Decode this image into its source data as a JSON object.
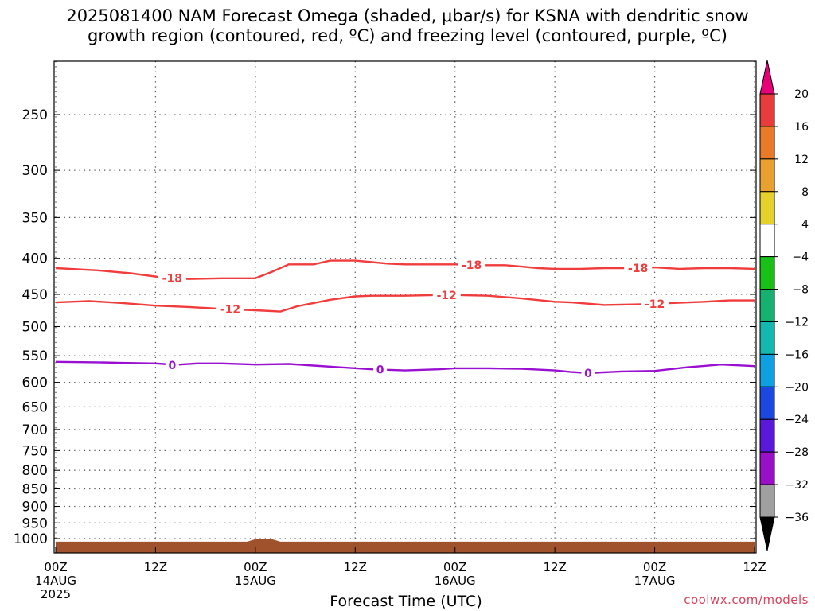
{
  "title_line1": "2025081400 NAM Forecast Omega (shaded, μbar/s) for KSNA with dendritic snow",
  "title_line2": "growth region (contoured, red, ºC) and freezing level (contoured, purple, ºC)",
  "credit": "coolwx.com/models",
  "chart_data": {
    "type": "line",
    "xlabel": "Forecast Time (UTC)",
    "ylabel": "",
    "y_scale": "log-pressure (inverted)",
    "ylim": [
      1050,
      200
    ],
    "xlim": [
      0,
      84
    ],
    "x_ticks": [
      {
        "x": 0,
        "label": [
          "00Z",
          "14AUG",
          "2025"
        ]
      },
      {
        "x": 12,
        "label": [
          "12Z"
        ]
      },
      {
        "x": 24,
        "label": [
          "00Z",
          "15AUG"
        ]
      },
      {
        "x": 36,
        "label": [
          "12Z"
        ]
      },
      {
        "x": 48,
        "label": [
          "00Z",
          "16AUG"
        ]
      },
      {
        "x": 60,
        "label": [
          "12Z"
        ]
      },
      {
        "x": 72,
        "label": [
          "00Z",
          "17AUG"
        ]
      },
      {
        "x": 84,
        "label": [
          "12Z"
        ]
      }
    ],
    "y_ticks": [
      250,
      300,
      350,
      400,
      450,
      500,
      550,
      600,
      650,
      700,
      750,
      800,
      850,
      900,
      950,
      1000
    ],
    "grid": true,
    "series": [
      {
        "name": "-18",
        "color": "#f03c3c",
        "label_at": [
          14,
          50,
          70
        ],
        "x": [
          0,
          5,
          9,
          13,
          16,
          20,
          24,
          26,
          28,
          31,
          33,
          36,
          38,
          40,
          42,
          45,
          48,
          51,
          54,
          56,
          58,
          60,
          63,
          66,
          68,
          70,
          72,
          75,
          78,
          81,
          84
        ],
        "y": [
          413,
          416,
          420,
          426,
          428,
          427,
          427,
          418,
          408,
          408,
          403,
          403,
          405,
          407,
          408,
          408,
          408,
          409,
          409,
          411,
          413,
          414,
          414,
          413,
          413,
          413,
          412,
          414,
          413,
          413,
          414
        ]
      },
      {
        "name": "-12",
        "color": "#f03c3c",
        "label_at": [
          21,
          47,
          72
        ],
        "x": [
          0,
          4,
          8,
          12,
          16,
          20,
          24,
          27,
          29,
          31,
          33,
          36,
          38,
          42,
          46,
          48,
          52,
          56,
          60,
          62,
          66,
          70,
          74,
          78,
          81,
          84
        ],
        "y": [
          462,
          460,
          463,
          467,
          469,
          472,
          474,
          476,
          468,
          463,
          458,
          453,
          452,
          452,
          451,
          451,
          452,
          456,
          461,
          462,
          466,
          465,
          463,
          461,
          459,
          459
        ]
      },
      {
        "name": "0",
        "color": "#9a10d0",
        "label_at": [
          14,
          39,
          64
        ],
        "x": [
          0,
          5,
          8,
          12,
          13,
          14,
          17,
          20,
          24,
          28,
          31,
          34,
          38,
          42,
          46,
          48,
          52,
          56,
          60,
          62,
          64,
          68,
          72,
          76,
          80,
          84
        ],
        "y": [
          561,
          562,
          563,
          564,
          565,
          567,
          564,
          564,
          566,
          565,
          568,
          571,
          575,
          577,
          575,
          573,
          573,
          574,
          577,
          580,
          582,
          579,
          578,
          571,
          566,
          569
        ]
      }
    ],
    "terrain": {
      "color": "#a0522d",
      "surface_hpa": [
        {
          "x": 0,
          "p": 1010
        },
        {
          "x": 23,
          "p": 1010
        },
        {
          "x": 24,
          "p": 1002
        },
        {
          "x": 26,
          "p": 1002
        },
        {
          "x": 27,
          "p": 1010
        },
        {
          "x": 84,
          "p": 1010
        }
      ]
    },
    "colorbar": {
      "labels": [
        "20",
        "16",
        "12",
        "8",
        "4",
        "−4",
        "−8",
        "−12",
        "−16",
        "−20",
        "−24",
        "−28",
        "−32",
        "−36"
      ],
      "colors": [
        "#e8007a",
        "#e63c3c",
        "#e87a28",
        "#e8a030",
        "#e6d02c",
        "#ffffff",
        "#18c018",
        "#16b070",
        "#14b8b0",
        "#0ea0e0",
        "#1c48e0",
        "#5a18d8",
        "#9a10c8",
        "#a0a0a0",
        "#000000"
      ]
    }
  }
}
